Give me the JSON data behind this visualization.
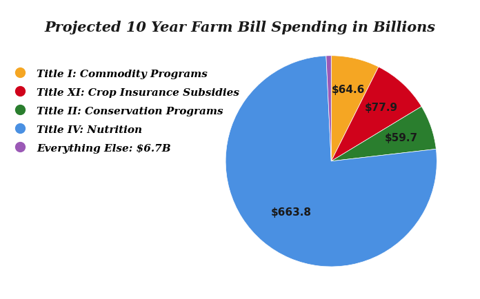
{
  "title": "Projected 10 Year Farm Bill Spending in Billions",
  "slices": [
    {
      "label": "Title I: Commodity Programs",
      "value": 64.6,
      "color": "#F5A623"
    },
    {
      "label": "Title XI: Crop Insurance Subsidies",
      "value": 77.9,
      "color": "#D0021B"
    },
    {
      "label": "Title II: Conservation Programs",
      "value": 59.7,
      "color": "#2A7E2E"
    },
    {
      "label": "Title IV: Nutrition",
      "value": 663.8,
      "color": "#4A90E2"
    },
    {
      "label": "Everything Else: $6.7B",
      "value": 6.7,
      "color": "#9B59B6"
    }
  ],
  "autopct_labels": [
    "$64.6",
    "$77.9",
    "$59.7",
    "$663.8",
    ""
  ],
  "title_fontsize": 15,
  "legend_fontsize": 11,
  "label_fontsize": 11,
  "startangle": 90,
  "background_color": "#FFFFFF",
  "label_color": "#1a1a1a"
}
